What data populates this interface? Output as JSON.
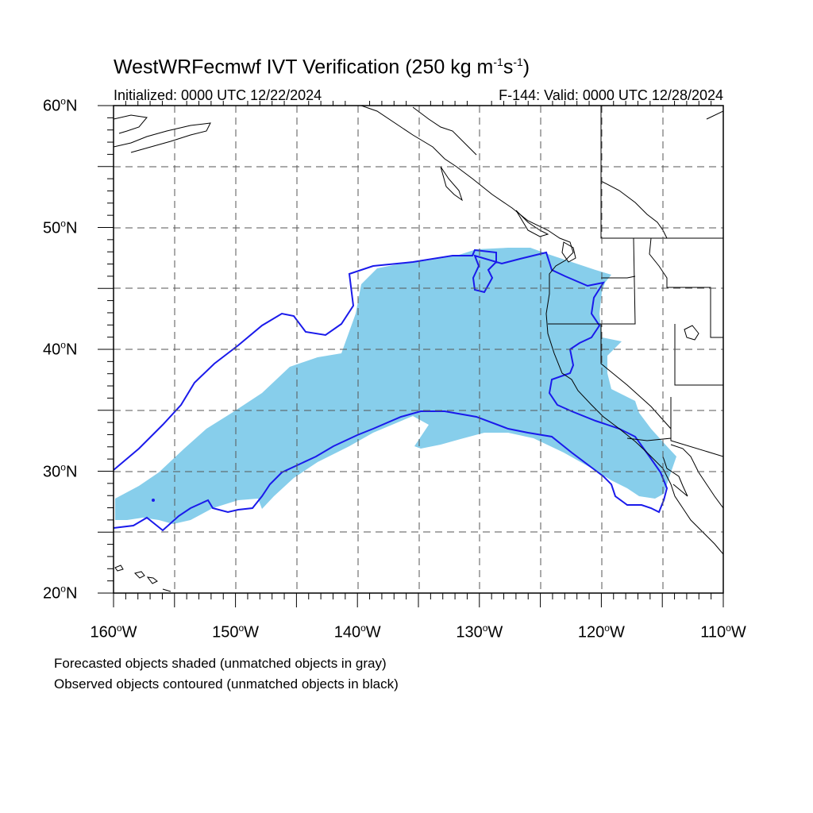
{
  "header": {
    "title_main": "WestWRFecmwf IVT Verification (250 kg m",
    "title_sup1": "-1",
    "title_mid": "s",
    "title_sup2": "-1",
    "title_end": ")",
    "initialized": "Initialized: 0000 UTC 12/22/2024",
    "valid": "F-144: Valid: 0000 UTC 12/28/2024"
  },
  "axes": {
    "lon_ticks": [
      "160°W",
      "150°W",
      "140°W",
      "130°W",
      "120°W",
      "110°W"
    ],
    "lat_ticks": [
      "20°N",
      "30°N",
      "40°N",
      "50°N",
      "60°N"
    ],
    "lon_range": [
      -160,
      -110
    ],
    "lat_range": [
      20,
      60
    ],
    "grid": true
  },
  "colors": {
    "forecast_fill": "#87ceeb",
    "observed_contour": "#1a1aeb",
    "coast": "#000000",
    "grid": "#555555"
  },
  "legend": {
    "line1": "Forecasted objects shaded (unmatched objects in gray)",
    "line2": "Observed objects contoured (unmatched objects in black)"
  }
}
